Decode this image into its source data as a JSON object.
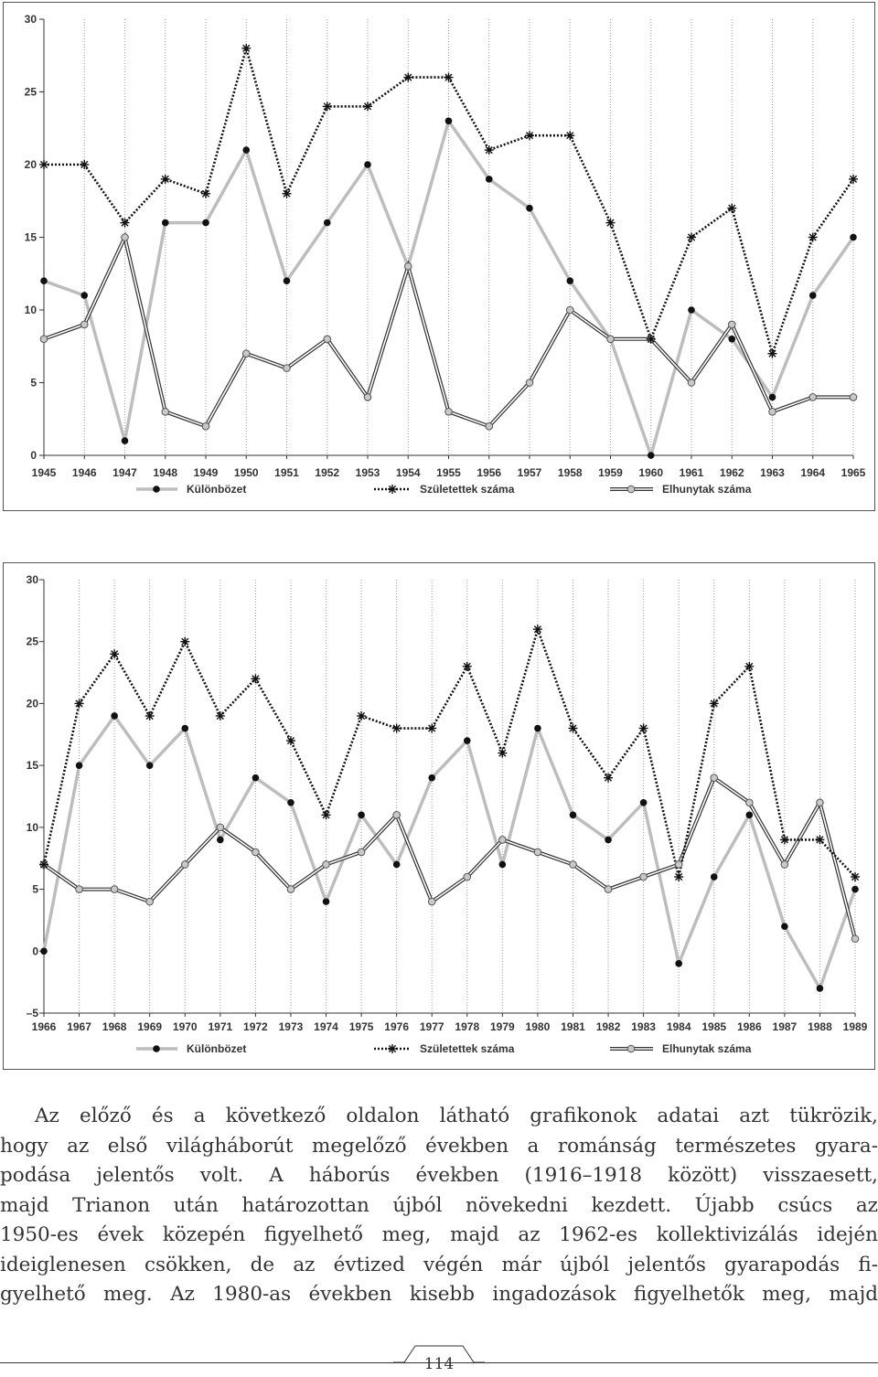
{
  "colors": {
    "kulonbozet": "#bdbdbd",
    "kulonbozet_marker": "#111111",
    "szuletettek": "#111111",
    "elhunytak_outer": "#333333",
    "elhunytak_inner": "#ffffff",
    "elhunytak_marker": "#c8c8c8",
    "grid": "#9a9a9a"
  },
  "chart_data": [
    {
      "type": "line",
      "x": [
        "1945",
        "1946",
        "1947",
        "1948",
        "1949",
        "1950",
        "1951",
        "1952",
        "1953",
        "1954",
        "1955",
        "1956",
        "1957",
        "1958",
        "1959",
        "1960",
        "1961",
        "1962",
        "1963",
        "1964",
        "1965"
      ],
      "ylim": [
        0,
        30
      ],
      "yticks": [
        "0",
        "5",
        "10",
        "15",
        "20",
        "25",
        "30"
      ],
      "grid": "vertical",
      "legend_position": "bottom",
      "series": [
        {
          "name": "Különbözet",
          "marker": "dot",
          "values": [
            12,
            11,
            1,
            16,
            16,
            21,
            12,
            16,
            20,
            13,
            23,
            19,
            17,
            12,
            8,
            0,
            10,
            8,
            4,
            11,
            15
          ]
        },
        {
          "name": "Születettek száma",
          "marker": "asterisk",
          "values": [
            20,
            20,
            16,
            19,
            18,
            28,
            18,
            24,
            24,
            26,
            26,
            21,
            22,
            22,
            16,
            8,
            15,
            17,
            7,
            15,
            19
          ]
        },
        {
          "name": "Elhunytak száma",
          "marker": "circle",
          "values": [
            8,
            9,
            15,
            3,
            2,
            7,
            6,
            8,
            4,
            13,
            3,
            2,
            5,
            10,
            8,
            8,
            5,
            9,
            3,
            4,
            4
          ]
        }
      ]
    },
    {
      "type": "line",
      "x": [
        "1966",
        "1967",
        "1968",
        "1969",
        "1970",
        "1971",
        "1972",
        "1973",
        "1974",
        "1975",
        "1976",
        "1977",
        "1978",
        "1979",
        "1980",
        "1981",
        "1982",
        "1983",
        "1984",
        "1985",
        "1986",
        "1987",
        "1988",
        "1989"
      ],
      "ylim": [
        -5,
        30
      ],
      "yticks": [
        "–5",
        "0",
        "5",
        "10",
        "15",
        "20",
        "25",
        "30"
      ],
      "grid": "vertical",
      "legend_position": "bottom",
      "series": [
        {
          "name": "Különbözet",
          "marker": "dot",
          "values": [
            0,
            15,
            19,
            15,
            18,
            9,
            14,
            12,
            4,
            11,
            7,
            14,
            17,
            7,
            18,
            11,
            9,
            12,
            -1,
            6,
            11,
            2,
            -3,
            5
          ]
        },
        {
          "name": "Születettek száma",
          "marker": "asterisk",
          "values": [
            7,
            20,
            24,
            19,
            25,
            19,
            22,
            17,
            11,
            19,
            18,
            18,
            23,
            16,
            26,
            18,
            14,
            18,
            6,
            20,
            23,
            9,
            9,
            6
          ]
        },
        {
          "name": "Elhunytak száma",
          "marker": "circle",
          "values": [
            7,
            5,
            5,
            4,
            7,
            10,
            8,
            5,
            7,
            8,
            11,
            4,
            6,
            9,
            8,
            7,
            5,
            6,
            7,
            14,
            12,
            7,
            12,
            1
          ]
        }
      ]
    }
  ],
  "text": {
    "lines": [
      "Az előző és a következő oldalon látható grafikonok adatai azt tükrözik,",
      "hogy az első világháborút megelőző években a románság természetes gyara-",
      "podása jelentős volt. A háborús években (1916–1918 között) visszaesett,",
      "majd Trianon után határozottan újból növekedni kezdett. Újabb csúcs az",
      "1950-es évek közepén figyelhető meg, majd az 1962-es kollektivizálás idején",
      "ideiglenesen csökken, de az évtized végén már újból jelentős gyarapodás fi-",
      "gyelhető meg. Az 1980-as években kisebb ingadozások figyelhetők meg, majd"
    ]
  },
  "page_number": "114"
}
